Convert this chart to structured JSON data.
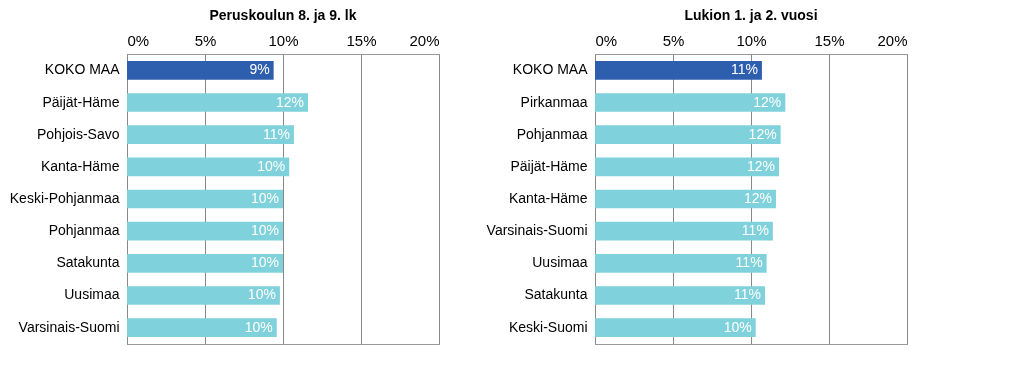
{
  "chart_data": [
    {
      "type": "bar",
      "orientation": "horizontal",
      "title": "Peruskoulun 8. ja 9. lk",
      "categories": [
        "KOKO MAA",
        "Päijät-Häme",
        "Pohjois-Savo",
        "Kanta-Häme",
        "Keski-Pohjanmaa",
        "Pohjanmaa",
        "Satakunta",
        "Uusimaa",
        "Varsinais-Suomi"
      ],
      "values": [
        9.4,
        11.6,
        10.7,
        10.4,
        10.0,
        10.0,
        10.0,
        9.8,
        9.6
      ],
      "value_labels": [
        "9%",
        "12%",
        "11%",
        "10%",
        "10%",
        "10%",
        "10%",
        "10%",
        "10%"
      ],
      "colors": [
        "#2e5fae",
        "#7fd1db",
        "#7fd1db",
        "#7fd1db",
        "#7fd1db",
        "#7fd1db",
        "#7fd1db",
        "#7fd1db",
        "#7fd1db"
      ],
      "xlim": [
        0,
        20
      ],
      "xticks": [
        {
          "value": 0,
          "label": "0%"
        },
        {
          "value": 5,
          "label": "5%"
        },
        {
          "value": 10,
          "label": "10%"
        },
        {
          "value": 15,
          "label": "15%"
        },
        {
          "value": 20,
          "label": "20%"
        }
      ],
      "grid": "x"
    },
    {
      "type": "bar",
      "orientation": "horizontal",
      "title": "Lukion 1. ja 2. vuosi",
      "categories": [
        "KOKO MAA",
        "Pirkanmaa",
        "Pohjanmaa",
        "Päijät-Häme",
        "Kanta-Häme",
        "Varsinais-Suomi",
        "Uusimaa",
        "Satakunta",
        "Keski-Suomi"
      ],
      "values": [
        10.7,
        12.2,
        11.9,
        11.8,
        11.6,
        11.4,
        11.0,
        10.9,
        10.3
      ],
      "value_labels": [
        "11%",
        "12%",
        "12%",
        "12%",
        "12%",
        "11%",
        "11%",
        "11%",
        "10%"
      ],
      "colors": [
        "#2e5fae",
        "#7fd1db",
        "#7fd1db",
        "#7fd1db",
        "#7fd1db",
        "#7fd1db",
        "#7fd1db",
        "#7fd1db",
        "#7fd1db"
      ],
      "xlim": [
        0,
        20
      ],
      "xticks": [
        {
          "value": 0,
          "label": "0%"
        },
        {
          "value": 5,
          "label": "5%"
        },
        {
          "value": 10,
          "label": "10%"
        },
        {
          "value": 15,
          "label": "15%"
        },
        {
          "value": 20,
          "label": "20%"
        }
      ],
      "grid": "x"
    }
  ]
}
